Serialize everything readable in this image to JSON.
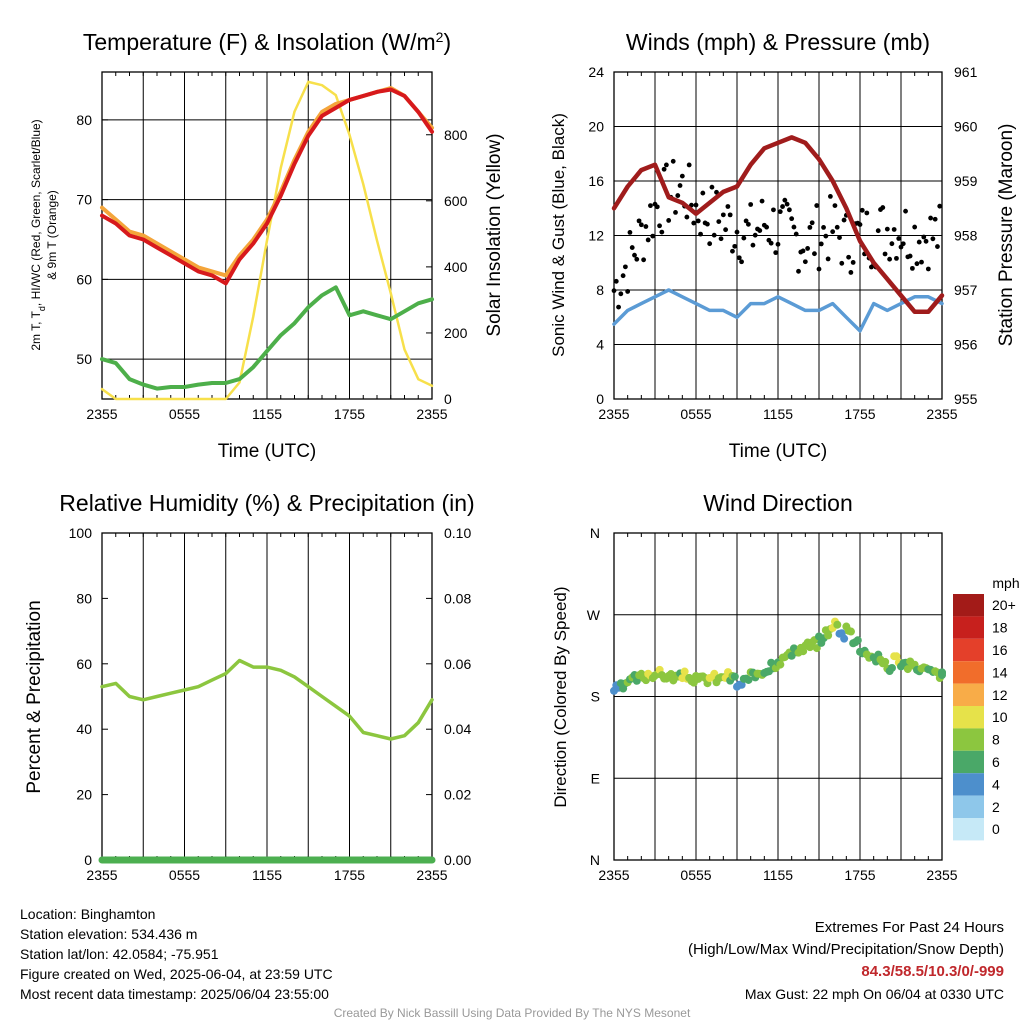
{
  "colors": {
    "temp_red": "#d7191c",
    "temp_orange": "#f4a53a",
    "dewpoint_green": "#4daf4a",
    "insolation_yellow": "#f7e04b",
    "wind_blue": "#5b9bd5",
    "gust_black": "#000000",
    "pressure_maroon": "#a01c1c",
    "rh_green": "#8cc63f",
    "precip_green": "#4caf50",
    "extreme_red": "#c0282c",
    "credit_gray": "#999999"
  },
  "chart_data": [
    {
      "type": "line",
      "title": "Temperature (F) & Insolation (W/m²)",
      "xlabel": "Time (UTC)",
      "ylabel": "2m T, Td, HI/WC (Red, Green, Scarlet/Blue) & 9m T (Orange)",
      "ylabel_right": "Solar Insolation (Yellow)",
      "x_ticks": [
        "2355",
        "0555",
        "1155",
        "1755",
        "2355"
      ],
      "ylim": [
        45,
        86
      ],
      "yticks": [
        50,
        60,
        70,
        80
      ],
      "ylim_right": [
        0,
        990
      ],
      "yticks_right": [
        0,
        200,
        400,
        600,
        800
      ],
      "x": [
        0,
        1,
        2,
        3,
        4,
        5,
        6,
        7,
        8,
        9,
        10,
        11,
        12,
        13,
        14,
        15,
        16,
        17,
        18,
        19,
        20,
        21,
        22,
        23,
        24
      ],
      "series": [
        {
          "key": "temp_9m",
          "axis": "left",
          "values": [
            69,
            67.5,
            66,
            65.5,
            64.5,
            63.5,
            62.5,
            61.5,
            61,
            60.5,
            63,
            65,
            67.5,
            71,
            75,
            78.5,
            81,
            82,
            82.5,
            83,
            83.5,
            84,
            83,
            81,
            79
          ]
        },
        {
          "key": "temp_2m",
          "axis": "left",
          "values": [
            68,
            67,
            65.5,
            65,
            64,
            63,
            62,
            61,
            60.5,
            59.5,
            62.5,
            64.5,
            67,
            70.5,
            74.5,
            78,
            80.5,
            81.5,
            82.5,
            83,
            83.5,
            83.8,
            83,
            81,
            78.5
          ]
        },
        {
          "key": "dewpoint",
          "axis": "left",
          "values": [
            50,
            49.5,
            47.5,
            46.8,
            46.3,
            46.5,
            46.5,
            46.8,
            47,
            47,
            47.5,
            49,
            51,
            53,
            54.5,
            56.5,
            58,
            59,
            55.5,
            56,
            55.5,
            55,
            56,
            57,
            57.5
          ]
        },
        {
          "key": "insolation",
          "axis": "right",
          "values": [
            30,
            0,
            0,
            0,
            0,
            0,
            0,
            0,
            0,
            0,
            50,
            250,
            480,
            700,
            870,
            960,
            950,
            920,
            800,
            650,
            480,
            320,
            150,
            60,
            40
          ]
        }
      ]
    },
    {
      "type": "line",
      "title": "Winds (mph) & Pressure (mb)",
      "xlabel": "Time (UTC)",
      "ylabel": "Sonic Wind & Gust (Blue, Black)",
      "ylabel_right": "Station Pressure (Maroon)",
      "x_ticks": [
        "2355",
        "0555",
        "1155",
        "1755",
        "2355"
      ],
      "ylim": [
        0,
        24
      ],
      "yticks": [
        0,
        4,
        8,
        12,
        16,
        20,
        24
      ],
      "ylim_right": [
        955,
        961
      ],
      "yticks_right": [
        955,
        956,
        957,
        958,
        959,
        960,
        961
      ],
      "x": [
        0,
        1,
        2,
        3,
        4,
        5,
        6,
        7,
        8,
        9,
        10,
        11,
        12,
        13,
        14,
        15,
        16,
        17,
        18,
        19,
        20,
        21,
        22,
        23,
        24
      ],
      "series": [
        {
          "key": "wind",
          "axis": "left",
          "values": [
            5.5,
            6.5,
            7,
            7.5,
            8,
            7.5,
            7,
            6.5,
            6.5,
            6,
            7,
            7,
            7.5,
            7,
            6.5,
            6.5,
            7,
            6,
            5,
            7,
            6.5,
            7,
            7.5,
            7.5,
            7
          ]
        },
        {
          "key": "gust",
          "axis": "left",
          "values": [
            8,
            10,
            12,
            14,
            15,
            15.5,
            14,
            13.5,
            13,
            12.5,
            12,
            13,
            12.5,
            12,
            11.5,
            12,
            12.5,
            11.5,
            12,
            12,
            12.5,
            12.5,
            12,
            12,
            12
          ]
        },
        {
          "key": "pressure",
          "axis": "right",
          "values": [
            958.5,
            958.9,
            959.2,
            959.3,
            958.7,
            958.6,
            958.4,
            958.6,
            958.8,
            958.9,
            959.3,
            959.6,
            959.7,
            959.8,
            959.7,
            959.4,
            959.0,
            958.5,
            957.9,
            957.5,
            957.2,
            956.9,
            956.6,
            956.6,
            956.9
          ]
        }
      ]
    },
    {
      "type": "line",
      "title": "Relative Humidity (%) & Precipitation (in)",
      "xlabel": "",
      "ylabel": "Percent & Precipitation",
      "x_ticks": [
        "2355",
        "0555",
        "1155",
        "1755",
        "2355"
      ],
      "ylim": [
        0,
        100
      ],
      "yticks": [
        0,
        20,
        40,
        60,
        80,
        100
      ],
      "ylim_right": [
        0,
        0.1
      ],
      "yticks_right": [
        "0.00",
        "0.02",
        "0.04",
        "0.06",
        "0.08",
        "0.10"
      ],
      "x": [
        0,
        1,
        2,
        3,
        4,
        5,
        6,
        7,
        8,
        9,
        10,
        11,
        12,
        13,
        14,
        15,
        16,
        17,
        18,
        19,
        20,
        21,
        22,
        23,
        24
      ],
      "series": [
        {
          "key": "rh",
          "axis": "left",
          "values": [
            53,
            54,
            50,
            49,
            50,
            51,
            52,
            53,
            55,
            57,
            61,
            59,
            59,
            58,
            56,
            53,
            50,
            47,
            44,
            39,
            38,
            37,
            38,
            42,
            49
          ]
        },
        {
          "key": "precip",
          "axis": "right",
          "values": [
            0,
            0,
            0,
            0,
            0,
            0,
            0,
            0,
            0,
            0,
            0,
            0,
            0,
            0,
            0,
            0,
            0,
            0,
            0,
            0,
            0,
            0,
            0,
            0,
            0
          ]
        }
      ]
    },
    {
      "type": "scatter",
      "title": "Wind Direction",
      "ylabel": "Direction (Colored By Speed)",
      "x_ticks": [
        "2355",
        "0555",
        "1155",
        "1755",
        "2355"
      ],
      "y_ticks": [
        "N",
        "E",
        "S",
        "W",
        "N"
      ],
      "ylim": [
        0,
        360
      ],
      "legend_title": "mph",
      "legend_labels": [
        "0",
        "2",
        "4",
        "6",
        "8",
        "10",
        "12",
        "14",
        "16",
        "18",
        "20+"
      ],
      "legend_colors": [
        "#c6e9f7",
        "#8ec7ea",
        "#4d8fcc",
        "#4aa868",
        "#8cc63f",
        "#e6e24a",
        "#f8ac48",
        "#f16d2b",
        "#e4402a",
        "#c7201d",
        "#a31b18"
      ],
      "x": [
        0,
        0.5,
        1,
        1.5,
        2,
        2.5,
        3,
        3.5,
        4,
        4.5,
        5,
        5.5,
        6,
        6.5,
        7,
        7.5,
        8,
        8.5,
        9,
        9.5,
        10,
        10.5,
        11,
        11.5,
        12,
        12.5,
        13,
        13.5,
        14,
        14.5,
        15,
        15.5,
        16,
        16.5,
        17,
        17.5,
        18,
        18.5,
        19,
        19.5,
        20,
        20.5,
        21,
        21.5,
        22,
        22.5,
        23,
        23.5,
        24
      ],
      "values": [
        188,
        190,
        197,
        200,
        202,
        205,
        205,
        203,
        202,
        201,
        203,
        200,
        198,
        199,
        201,
        199,
        203,
        200,
        193,
        197,
        202,
        207,
        210,
        216,
        220,
        225,
        228,
        232,
        236,
        238,
        242,
        252,
        260,
        248,
        256,
        240,
        232,
        226,
        222,
        218,
        212,
        222,
        216,
        214,
        212,
        210,
        207,
        205,
        203
      ],
      "speed": [
        5,
        6,
        7,
        7,
        8,
        9,
        9,
        8,
        8,
        7,
        10,
        9,
        8,
        8,
        10,
        8,
        9,
        7,
        4,
        6,
        7,
        8,
        7,
        7,
        7,
        8,
        6,
        8,
        7,
        7,
        6,
        8,
        9,
        4,
        8,
        6,
        7,
        8,
        6,
        8,
        7,
        9,
        6,
        8,
        7,
        8,
        7,
        8,
        7
      ]
    }
  ],
  "info": {
    "location": "Location: Binghamton",
    "elevation": "Station elevation: 534.436 m",
    "latlon": "Station lat/lon: 42.0584; -75.951",
    "created": "Figure created on Wed, 2025-06-04, at 23:59 UTC",
    "recent": "Most recent data timestamp: 2025/06/04 23:55:00"
  },
  "extremes": {
    "title": "Extremes For Past 24 Hours",
    "subtitle": "(High/Low/Max Wind/Precipitation/Snow Depth)",
    "values": "84.3/58.5/10.3/0/-999",
    "gust": "Max Gust: 22 mph On 06/04 at 0330 UTC"
  },
  "credit": "Created By Nick Bassill Using Data Provided By The NYS Mesonet"
}
